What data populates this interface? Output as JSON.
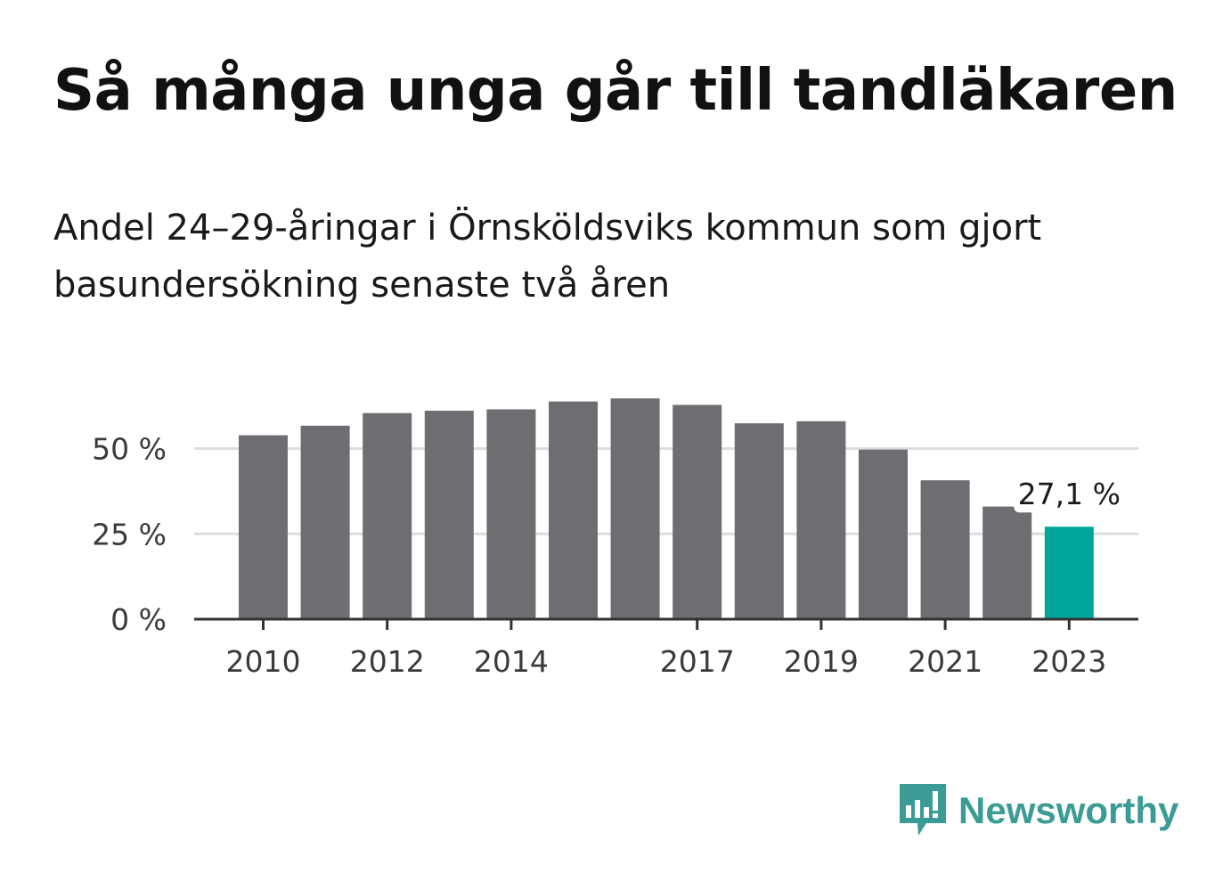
{
  "title": "Så många unga går till tandläkaren",
  "subtitle": "Andel 24–29-åringar i Örnsköldsviks kommun som gjort basundersökning senaste två åren",
  "chart_data": {
    "type": "bar",
    "categories": [
      "2010",
      "2011",
      "2012",
      "2013",
      "2014",
      "2015",
      "2016",
      "2017",
      "2018",
      "2019",
      "2020",
      "2021",
      "2022",
      "2023"
    ],
    "values": [
      53.9,
      56.7,
      60.4,
      61.1,
      61.5,
      63.8,
      64.7,
      62.8,
      57.4,
      58.0,
      49.7,
      40.7,
      33.0,
      27.1
    ],
    "ylim": [
      0,
      70
    ],
    "yticks": [
      0,
      25,
      50
    ],
    "ytick_labels": [
      "0 %",
      "25 %",
      "50 %"
    ],
    "xtick_labels": [
      "2010",
      "2012",
      "2014",
      "2017",
      "2019",
      "2021",
      "2023"
    ],
    "highlight_label": "27,1 %",
    "grid": true,
    "colors": {
      "bar": "#6e6d72",
      "highlight": "#00a699",
      "grid": "#dddddd",
      "axis": "#333333"
    }
  },
  "brand": {
    "name": "Newsworthy",
    "color": "#3a9c94"
  }
}
